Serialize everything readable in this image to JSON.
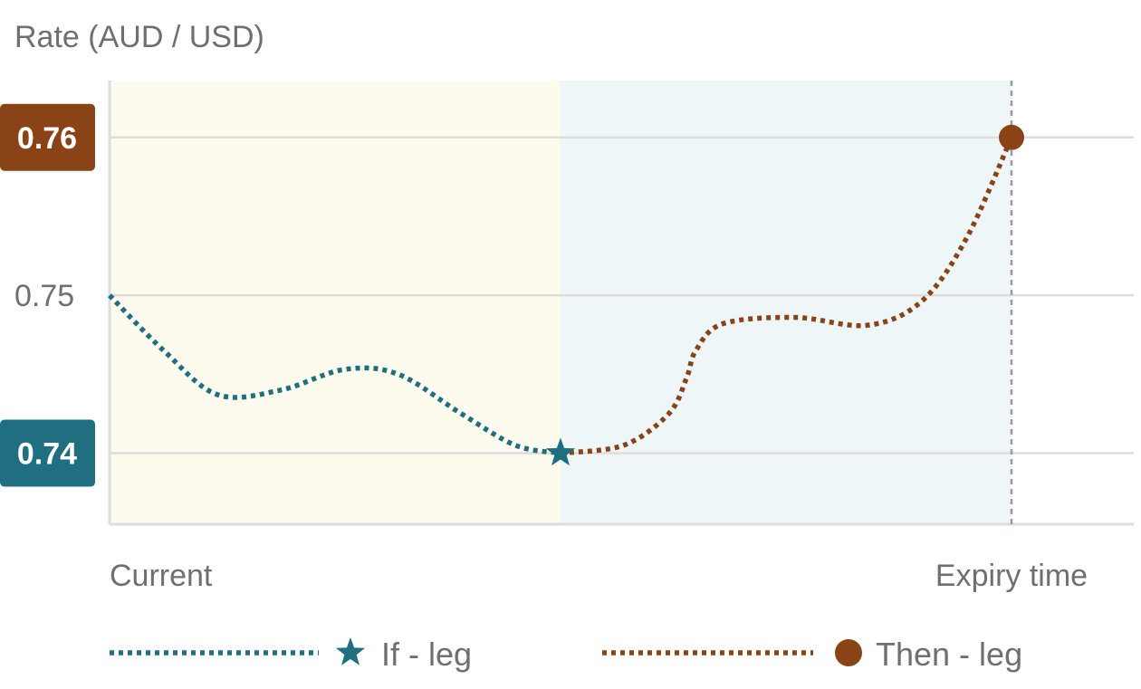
{
  "chart_data": {
    "type": "line",
    "ylabel": "Rate (AUD / USD)",
    "xlabel": "",
    "ylim": [
      0.7355,
      0.7636
    ],
    "x_tick_labels": [
      "Current",
      "Expiry time"
    ],
    "y_ticks": [
      0.74,
      0.75,
      0.76
    ],
    "y_tick_labels": {
      "0.74": "0.74",
      "0.75": "0.75",
      "0.76": "0.76"
    },
    "highlighted_ticks": [
      {
        "value": 0.76,
        "label": "0.76",
        "color": "#8a4316"
      },
      {
        "value": 0.74,
        "label": "0.74",
        "color": "#1f6f80"
      }
    ],
    "regions": [
      {
        "from": 0,
        "to": 0.5,
        "color": "#fdfaee"
      },
      {
        "from": 0.5,
        "to": 1,
        "color": "#eff6f8"
      }
    ],
    "expiry_marker": {
      "x": 1,
      "style": "dashed",
      "color": "#9a9a9a"
    },
    "grid": true,
    "legend_position": "bottom",
    "series": [
      {
        "name": "If - leg",
        "color": "#1f6f80",
        "marker": "star",
        "x": [
          0,
          0.06,
          0.12,
          0.19,
          0.26,
          0.32,
          0.39,
          0.45,
          0.5
        ],
        "y": [
          0.75,
          0.7465,
          0.7437,
          0.744,
          0.7453,
          0.745,
          0.7425,
          0.7405,
          0.74
        ]
      },
      {
        "name": "Then - leg",
        "color": "#8a4316",
        "marker": "circle",
        "x": [
          0.5,
          0.57,
          0.62,
          0.64,
          0.65,
          0.68,
          0.76,
          0.84,
          0.9,
          0.95,
          1
        ],
        "y": [
          0.74,
          0.7405,
          0.7425,
          0.7448,
          0.7465,
          0.7482,
          0.7486,
          0.7481,
          0.7496,
          0.7536,
          0.76
        ]
      }
    ]
  }
}
